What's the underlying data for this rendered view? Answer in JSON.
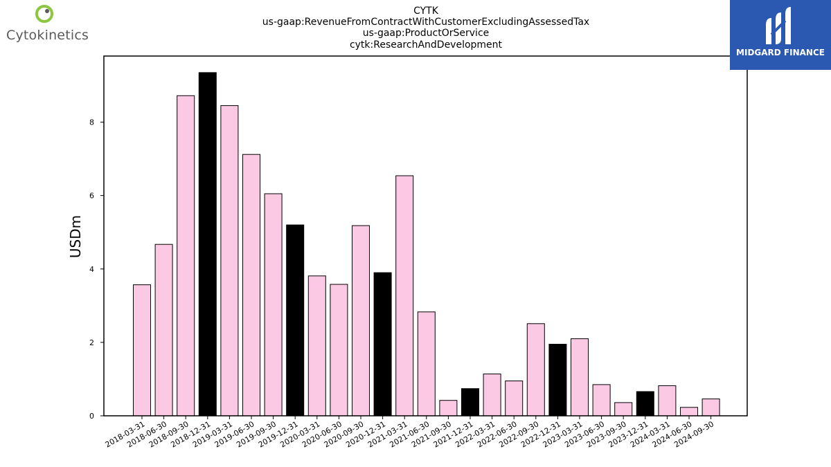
{
  "header": {
    "title_lines": [
      "CYTK",
      "us-gaap:RevenueFromContractWithCustomerExcludingAssessedTax",
      "us-gaap:ProductOrService",
      "cytk:ResearchAndDevelopment"
    ]
  },
  "company_logo": {
    "name": "Cytokinetics",
    "icon": "cytokinetics-ring-logo",
    "accent": "#8cc63f"
  },
  "brand_logo": {
    "name": "MIDGARD FINANCE",
    "icon": "midgard-m-logo",
    "background": "#2b58b0"
  },
  "chart_data": {
    "type": "bar",
    "ylabel": "USDm",
    "ylim": [
      0,
      9.8
    ],
    "yticks": [
      0,
      2,
      4,
      6,
      8
    ],
    "categories": [
      "2018-03-31",
      "2018-06-30",
      "2018-09-30",
      "2018-12-31",
      "2019-03-31",
      "2019-06-30",
      "2019-09-30",
      "2019-12-31",
      "2020-03-31",
      "2020-06-30",
      "2020-09-30",
      "2020-12-31",
      "2021-03-31",
      "2021-06-30",
      "2021-09-30",
      "2021-12-31",
      "2022-03-31",
      "2022-06-30",
      "2022-09-30",
      "2022-12-31",
      "2023-03-31",
      "2023-06-30",
      "2023-09-30",
      "2023-12-31",
      "2024-03-31",
      "2024-06-30",
      "2024-09-30"
    ],
    "values": [
      3.57,
      4.67,
      8.72,
      9.35,
      8.45,
      7.12,
      6.05,
      5.2,
      3.81,
      3.58,
      5.18,
      3.9,
      6.54,
      2.83,
      0.42,
      0.74,
      1.14,
      0.95,
      2.51,
      1.95,
      2.1,
      0.85,
      0.36,
      0.66,
      0.82,
      0.23,
      0.46
    ],
    "bar_colors": {
      "quarter": "#fbc9e3",
      "year_end": "#000000"
    },
    "grid": false
  }
}
